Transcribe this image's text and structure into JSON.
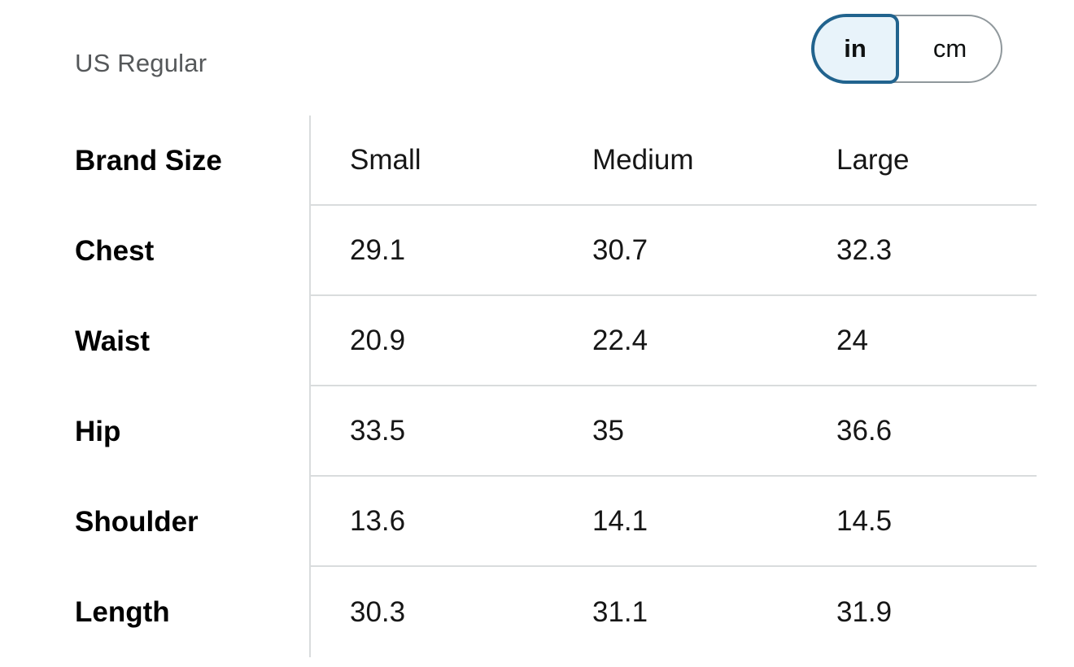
{
  "page": {
    "fit_label": "US Regular"
  },
  "unit_toggle": {
    "selected": "in",
    "options": [
      {
        "label": "in"
      },
      {
        "label": "cm"
      }
    ]
  },
  "size_table": {
    "corner_header": "Brand Size",
    "column_headers": [
      "Small",
      "Medium",
      "Large"
    ],
    "rows": [
      {
        "label": "Chest",
        "values": [
          "29.1",
          "30.7",
          "32.3"
        ]
      },
      {
        "label": "Waist",
        "values": [
          "20.9",
          "22.4",
          "24"
        ]
      },
      {
        "label": "Hip",
        "values": [
          "33.5",
          "35",
          "36.6"
        ]
      },
      {
        "label": "Shoulder",
        "values": [
          "13.6",
          "14.1",
          "14.5"
        ]
      },
      {
        "label": "Length",
        "values": [
          "30.3",
          "31.1",
          "31.9"
        ]
      }
    ]
  },
  "colors": {
    "accent_blue": "#21638e",
    "toggle_selected_fill": "#e8f3fa",
    "divider": "#d9dcdd",
    "muted_text": "#55585a"
  }
}
